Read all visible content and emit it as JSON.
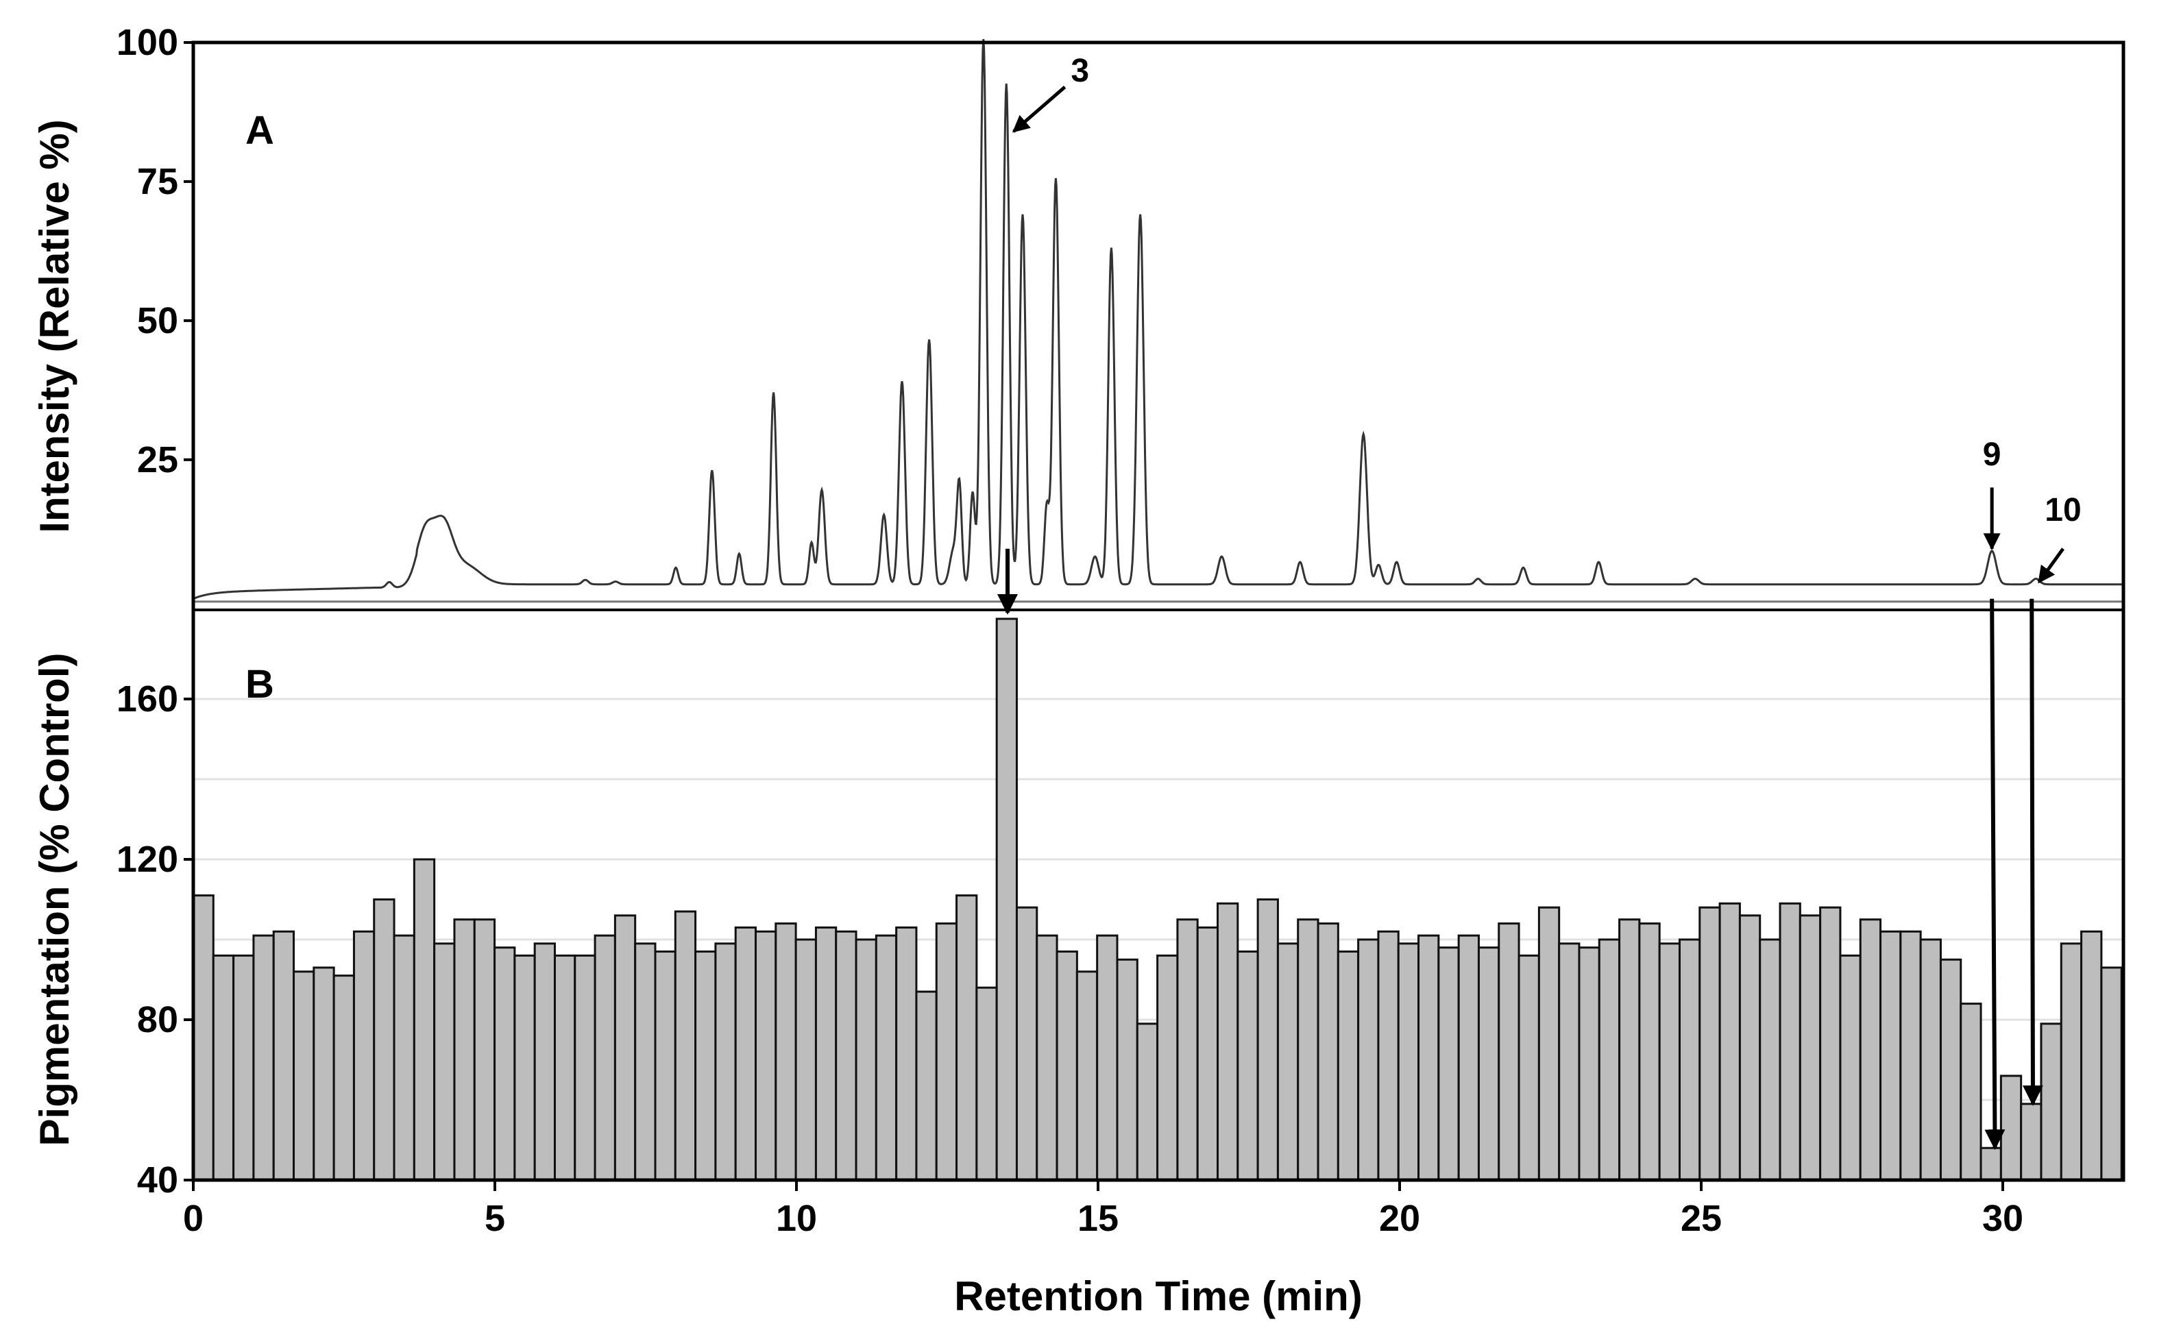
{
  "chart_data": [
    {
      "panel_label": "A",
      "type": "line",
      "ylabel": "Intensity (Relative %)",
      "xlim": [
        0,
        32
      ],
      "ylim": [
        -2,
        100
      ],
      "yticks": [
        "25",
        "50",
        "75",
        "100"
      ],
      "baseline": 2,
      "peaks": [
        {
          "x": 3.25,
          "h": 1.0,
          "w": 0.05
        },
        {
          "x": 3.85,
          "h": 9.5,
          "w": 0.15
        },
        {
          "x": 4.15,
          "h": 9.5,
          "w": 0.15
        },
        {
          "x": 4.5,
          "h": 3.5,
          "w": 0.25
        },
        {
          "x": 6.5,
          "h": 0.8,
          "w": 0.05
        },
        {
          "x": 7.0,
          "h": 0.5,
          "w": 0.05
        },
        {
          "x": 8.0,
          "h": 3.0,
          "w": 0.04
        },
        {
          "x": 8.6,
          "h": 20.5,
          "w": 0.045
        },
        {
          "x": 9.05,
          "h": 5.5,
          "w": 0.04
        },
        {
          "x": 9.62,
          "h": 34.5,
          "w": 0.045
        },
        {
          "x": 10.25,
          "h": 7.5,
          "w": 0.04
        },
        {
          "x": 10.42,
          "h": 17.0,
          "w": 0.05
        },
        {
          "x": 11.45,
          "h": 12.5,
          "w": 0.05
        },
        {
          "x": 11.75,
          "h": 36.5,
          "w": 0.05
        },
        {
          "x": 12.2,
          "h": 44.0,
          "w": 0.05
        },
        {
          "x": 12.6,
          "h": 6.0,
          "w": 0.06
        },
        {
          "x": 12.7,
          "h": 17.5,
          "w": 0.04
        },
        {
          "x": 12.92,
          "h": 16.5,
          "w": 0.04
        },
        {
          "x": 13.1,
          "h": 98.0,
          "w": 0.05
        },
        {
          "x": 13.48,
          "h": 90.0,
          "w": 0.05
        },
        {
          "x": 13.75,
          "h": 66.5,
          "w": 0.05
        },
        {
          "x": 14.15,
          "h": 14.0,
          "w": 0.04
        },
        {
          "x": 14.3,
          "h": 73.0,
          "w": 0.05
        },
        {
          "x": 14.95,
          "h": 5.0,
          "w": 0.06
        },
        {
          "x": 15.22,
          "h": 60.5,
          "w": 0.05
        },
        {
          "x": 15.7,
          "h": 66.5,
          "w": 0.055
        },
        {
          "x": 17.05,
          "h": 5.0,
          "w": 0.06
        },
        {
          "x": 18.35,
          "h": 4.0,
          "w": 0.05
        },
        {
          "x": 19.4,
          "h": 27.0,
          "w": 0.06
        },
        {
          "x": 19.65,
          "h": 3.5,
          "w": 0.05
        },
        {
          "x": 19.95,
          "h": 4.0,
          "w": 0.05
        },
        {
          "x": 21.3,
          "h": 1.0,
          "w": 0.05
        },
        {
          "x": 22.05,
          "h": 3.0,
          "w": 0.05
        },
        {
          "x": 23.3,
          "h": 4.0,
          "w": 0.05
        },
        {
          "x": 24.9,
          "h": 1.0,
          "w": 0.06
        },
        {
          "x": 29.82,
          "h": 6.0,
          "w": 0.07
        },
        {
          "x": 30.55,
          "h": 1.0,
          "w": 0.06
        }
      ],
      "annotations": [
        {
          "text": "3",
          "x": 13.5,
          "y": 90
        },
        {
          "text": "9",
          "x": 29.82,
          "y": 7
        },
        {
          "text": "10",
          "x": 30.55,
          "y": 2
        }
      ]
    },
    {
      "panel_label": "B",
      "type": "bar",
      "ylabel": "Pigmentation (% Control)",
      "xlabel": "Retention Time (min)",
      "xlim": [
        0,
        32
      ],
      "ylim": [
        40,
        180
      ],
      "yticks": [
        "40",
        "80",
        "120",
        "160"
      ],
      "xticks": [
        "0",
        "5",
        "10",
        "15",
        "20",
        "25",
        "30"
      ],
      "bar_width": 0.333,
      "values": [
        111,
        96,
        96,
        101,
        102,
        92,
        93,
        91,
        102,
        110,
        101,
        120,
        99,
        105,
        105,
        98,
        96,
        99,
        96,
        96,
        101,
        106,
        99,
        97,
        107,
        97,
        99,
        103,
        102,
        104,
        100,
        103,
        102,
        100,
        101,
        103,
        87,
        104,
        111,
        88,
        180,
        108,
        101,
        97,
        92,
        101,
        95,
        79,
        96,
        105,
        103,
        109,
        97,
        110,
        99,
        105,
        104,
        97,
        100,
        102,
        99,
        101,
        98,
        101,
        98,
        104,
        96,
        108,
        99,
        98,
        100,
        105,
        104,
        99,
        100,
        108,
        109,
        106,
        100,
        109,
        106,
        108,
        96,
        105,
        102,
        102,
        100,
        95,
        84,
        48,
        66,
        59,
        79,
        99,
        102,
        93
      ],
      "arrows_from_peaks": [
        13.5,
        29.82,
        30.55
      ]
    }
  ]
}
